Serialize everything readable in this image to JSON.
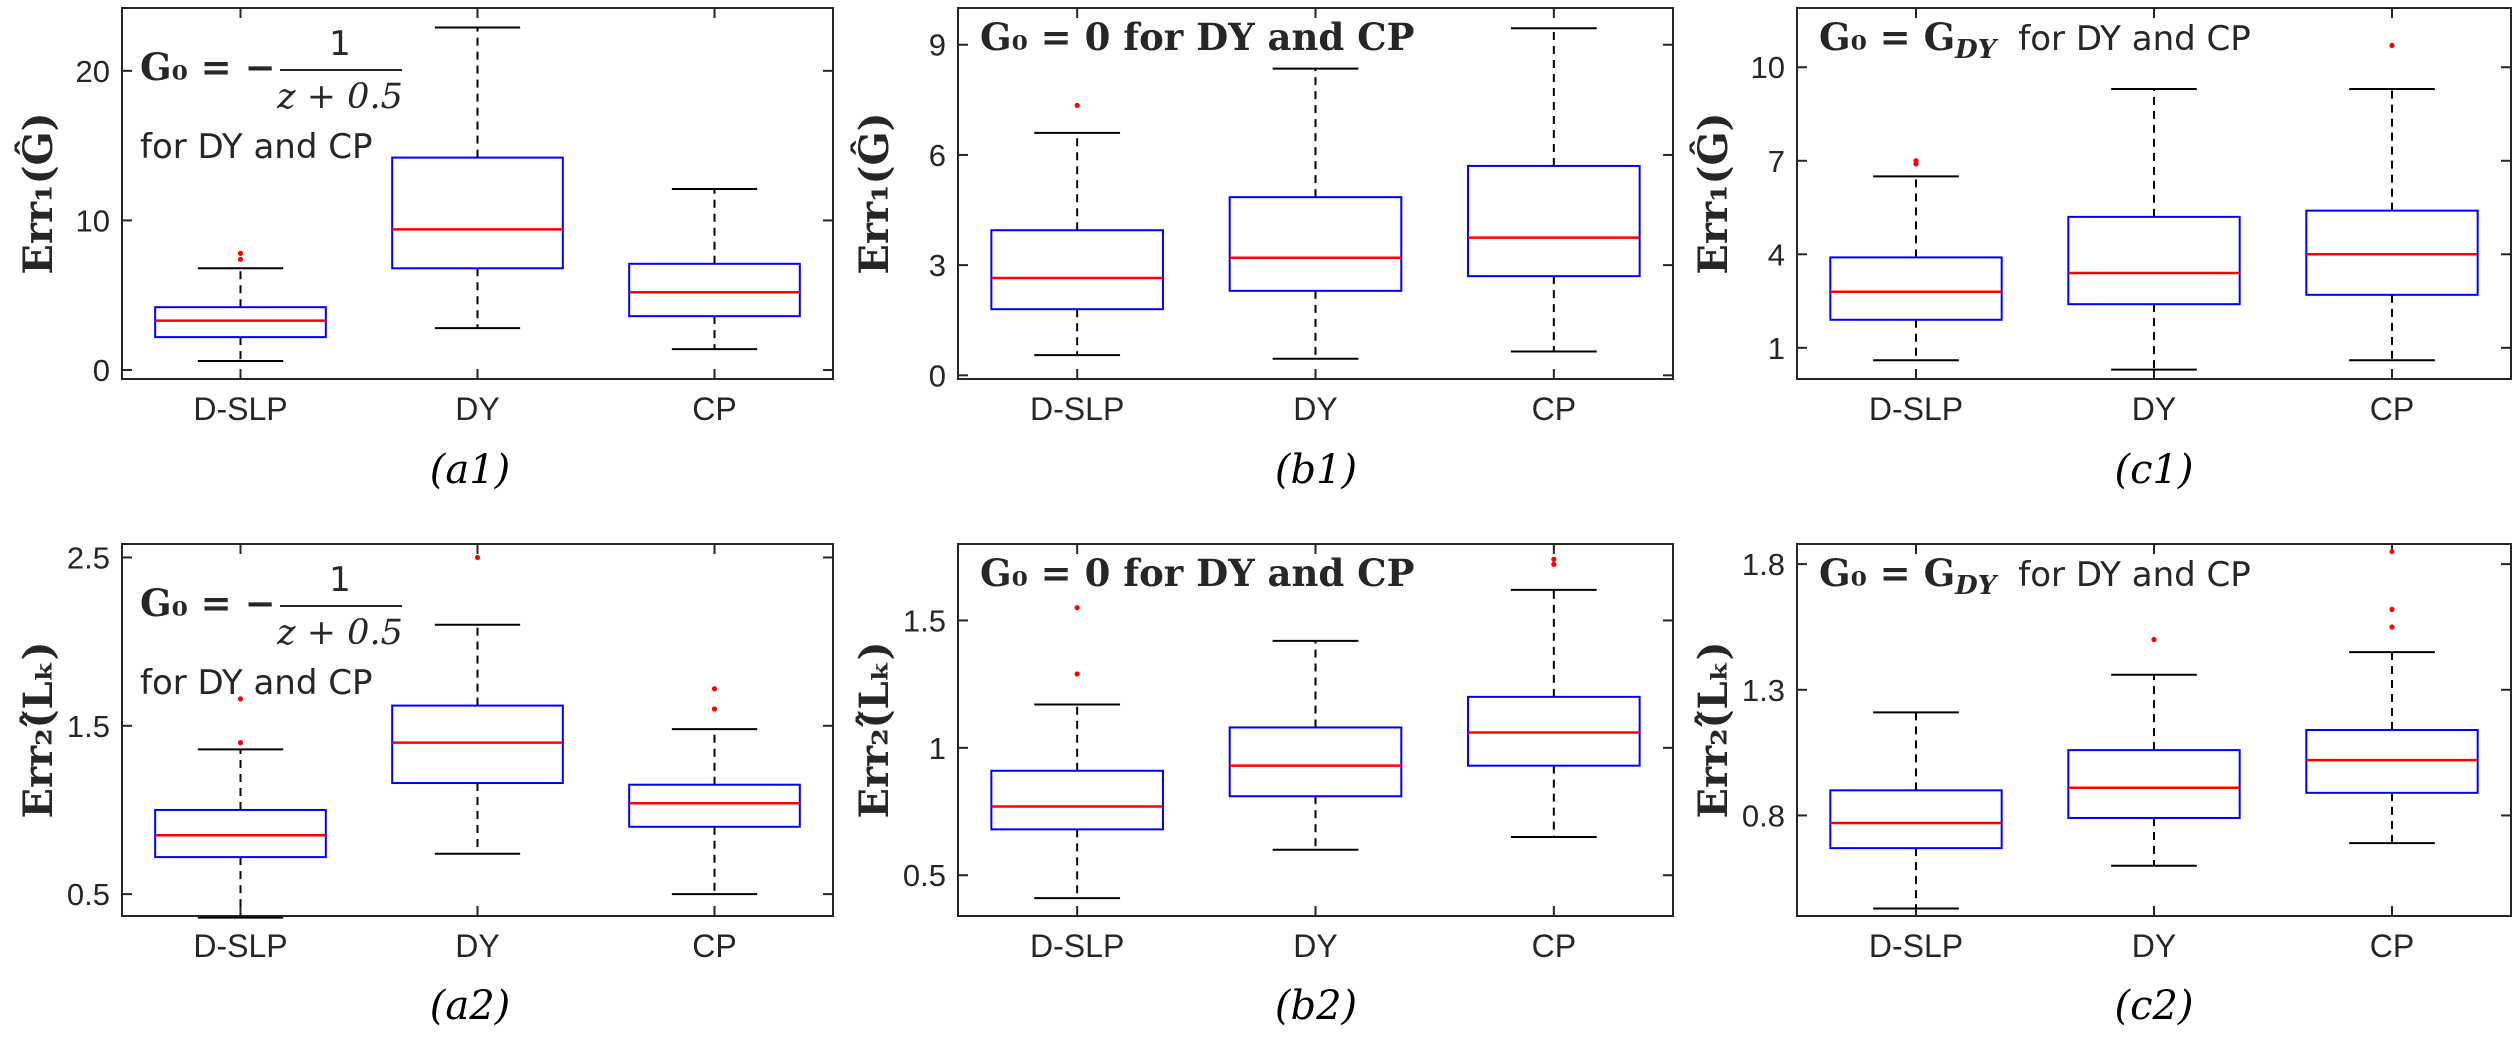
{
  "colors": {
    "box": "#0000ff",
    "median": "#ff0000",
    "outlier": "#ff0000",
    "whisker": "#000000"
  },
  "chart_data": [
    {
      "id": "a1",
      "type": "box",
      "caption": "(a1)",
      "ylabel": "Err₁(Ĝ)",
      "ylim": [
        -0.6,
        24.2
      ],
      "yticks": [
        0,
        10,
        20
      ],
      "annotation": {
        "lhs": "G₀ = −",
        "numerator": "1",
        "denominator": "z + 0.5",
        "suffix": "for DY and CP"
      },
      "categories": [
        "D-SLP",
        "DY",
        "CP"
      ],
      "boxes": [
        {
          "name": "D-SLP",
          "whisker_low": 0.6,
          "q1": 2.2,
          "median": 3.3,
          "q3": 4.2,
          "whisker_high": 6.8,
          "outliers": [
            7.4,
            7.8
          ]
        },
        {
          "name": "DY",
          "whisker_low": 2.8,
          "q1": 6.8,
          "median": 9.4,
          "q3": 14.2,
          "whisker_high": 22.9,
          "outliers": []
        },
        {
          "name": "CP",
          "whisker_low": 1.4,
          "q1": 3.6,
          "median": 5.2,
          "q3": 7.1,
          "whisker_high": 12.1,
          "outliers": []
        }
      ]
    },
    {
      "id": "b1",
      "type": "box",
      "caption": "(b1)",
      "ylabel": "Err₁(Ĝ)",
      "ylim": [
        -0.1,
        10.0
      ],
      "yticks": [
        0,
        3,
        6,
        9
      ],
      "annotation": {
        "text": "G₀ = 0 for DY and CP"
      },
      "categories": [
        "D-SLP",
        "DY",
        "CP"
      ],
      "boxes": [
        {
          "name": "D-SLP",
          "whisker_low": 0.55,
          "q1": 1.8,
          "median": 2.65,
          "q3": 3.95,
          "whisker_high": 6.6,
          "outliers": [
            7.35
          ]
        },
        {
          "name": "DY",
          "whisker_low": 0.45,
          "q1": 2.3,
          "median": 3.2,
          "q3": 4.85,
          "whisker_high": 8.35,
          "outliers": []
        },
        {
          "name": "CP",
          "whisker_low": 0.65,
          "q1": 2.7,
          "median": 3.75,
          "q3": 5.7,
          "whisker_high": 9.45,
          "outliers": []
        }
      ]
    },
    {
      "id": "c1",
      "type": "box",
      "caption": "(c1)",
      "ylabel": "Err₁(Ĝ)",
      "ylim": [
        0.0,
        11.9
      ],
      "yticks": [
        1,
        4,
        7,
        10
      ],
      "annotation": {
        "lhs": "G₀ = G",
        "sub": "DY",
        "suffix": "for DY and CP"
      },
      "categories": [
        "D-SLP",
        "DY",
        "CP"
      ],
      "boxes": [
        {
          "name": "D-SLP",
          "whisker_low": 0.6,
          "q1": 1.9,
          "median": 2.8,
          "q3": 3.9,
          "whisker_high": 6.5,
          "outliers": [
            6.9,
            7.0
          ]
        },
        {
          "name": "DY",
          "whisker_low": 0.3,
          "q1": 2.4,
          "median": 3.4,
          "q3": 5.2,
          "whisker_high": 9.3,
          "outliers": []
        },
        {
          "name": "CP",
          "whisker_low": 0.6,
          "q1": 2.7,
          "median": 4.0,
          "q3": 5.4,
          "whisker_high": 9.3,
          "outliers": [
            10.7
          ]
        }
      ]
    },
    {
      "id": "a2",
      "type": "box",
      "caption": "(a2)",
      "ylabel": "Err₂(̂Lₖ)",
      "ylim": [
        0.37,
        2.58
      ],
      "yticks": [
        0.5,
        1.5,
        2.5
      ],
      "annotation": {
        "lhs": "G₀ = −",
        "numerator": "1",
        "denominator": "z + 0.5",
        "suffix": "for DY and CP"
      },
      "categories": [
        "D-SLP",
        "DY",
        "CP"
      ],
      "boxes": [
        {
          "name": "D-SLP",
          "whisker_low": 0.36,
          "q1": 0.72,
          "median": 0.85,
          "q3": 1.0,
          "whisker_high": 1.36,
          "outliers": [
            1.4,
            1.66
          ]
        },
        {
          "name": "DY",
          "whisker_low": 0.74,
          "q1": 1.16,
          "median": 1.4,
          "q3": 1.62,
          "whisker_high": 2.1,
          "outliers": [
            2.5
          ]
        },
        {
          "name": "CP",
          "whisker_low": 0.5,
          "q1": 0.9,
          "median": 1.04,
          "q3": 1.15,
          "whisker_high": 1.48,
          "outliers": [
            1.6,
            1.72
          ]
        }
      ]
    },
    {
      "id": "b2",
      "type": "box",
      "caption": "(b2)",
      "ylabel": "Err₂(̂Lₖ)",
      "ylim": [
        0.34,
        1.8
      ],
      "yticks": [
        0.5,
        1,
        1.5
      ],
      "annotation": {
        "text": "G₀ = 0 for DY and CP"
      },
      "categories": [
        "D-SLP",
        "DY",
        "CP"
      ],
      "boxes": [
        {
          "name": "D-SLP",
          "whisker_low": 0.41,
          "q1": 0.68,
          "median": 0.77,
          "q3": 0.91,
          "whisker_high": 1.17,
          "outliers": [
            1.29,
            1.55
          ]
        },
        {
          "name": "DY",
          "whisker_low": 0.6,
          "q1": 0.81,
          "median": 0.93,
          "q3": 1.08,
          "whisker_high": 1.42,
          "outliers": []
        },
        {
          "name": "CP",
          "whisker_low": 0.65,
          "q1": 0.93,
          "median": 1.06,
          "q3": 1.2,
          "whisker_high": 1.62,
          "outliers": [
            1.72,
            1.74
          ]
        }
      ]
    },
    {
      "id": "c2",
      "type": "box",
      "caption": "(c2)",
      "ylabel": "Err₂(̂Lₖ)",
      "ylim": [
        0.4,
        1.88
      ],
      "yticks": [
        0.8,
        1.3,
        1.8
      ],
      "annotation": {
        "lhs": "G₀ = G",
        "sub": "DY",
        "suffix": "for DY and CP"
      },
      "categories": [
        "D-SLP",
        "DY",
        "CP"
      ],
      "boxes": [
        {
          "name": "D-SLP",
          "whisker_low": 0.43,
          "q1": 0.67,
          "median": 0.77,
          "q3": 0.9,
          "whisker_high": 1.21,
          "outliers": []
        },
        {
          "name": "DY",
          "whisker_low": 0.6,
          "q1": 0.79,
          "median": 0.91,
          "q3": 1.06,
          "whisker_high": 1.36,
          "outliers": [
            1.5
          ]
        },
        {
          "name": "CP",
          "whisker_low": 0.69,
          "q1": 0.89,
          "median": 1.02,
          "q3": 1.14,
          "whisker_high": 1.45,
          "outliers": [
            1.55,
            1.62,
            1.85
          ]
        }
      ]
    }
  ]
}
